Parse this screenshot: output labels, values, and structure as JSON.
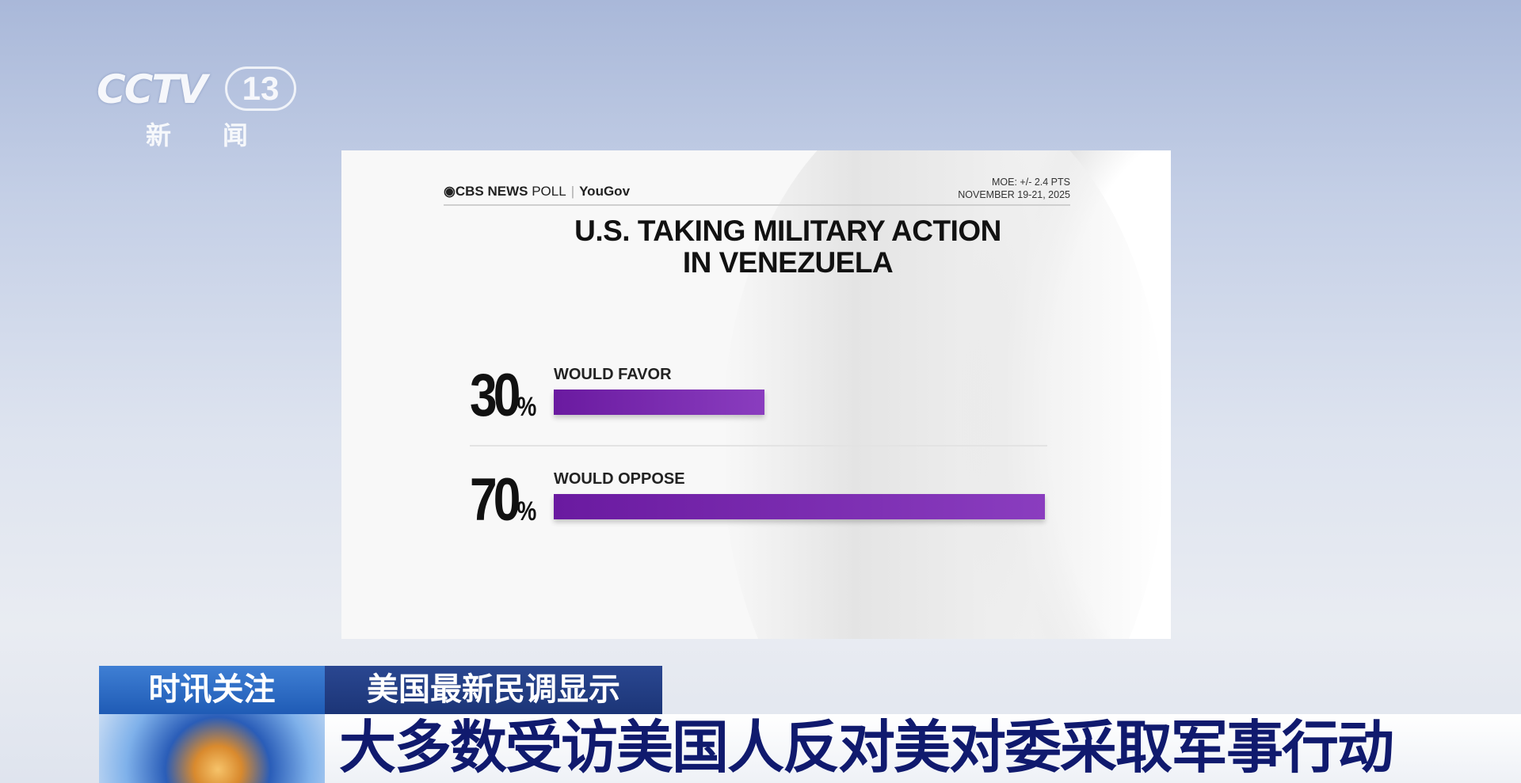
{
  "channel": {
    "logo_text": "CCTV",
    "channel_number": "13",
    "channel_name": "新 闻"
  },
  "card": {
    "source": "CBS NEWS",
    "source_suffix": "POLL",
    "partner": "YouGov",
    "moe": "MOE: +/- 2.4 PTS",
    "dates": "NOVEMBER 19-21, 2025",
    "title_line1": "U.S. TAKING MILITARY ACTION",
    "title_line2": "IN VENEZUELA"
  },
  "chart_data": {
    "type": "bar",
    "orientation": "horizontal",
    "title": "U.S. TAKING MILITARY ACTION IN VENEZUELA",
    "categories": [
      "WOULD FAVOR",
      "WOULD OPPOSE"
    ],
    "values": [
      30,
      70
    ],
    "value_labels": [
      "30",
      "70"
    ],
    "unit": "%",
    "xlim": [
      0,
      100
    ],
    "bar_color": "#8a3dbf",
    "grid": false
  },
  "lower_third": {
    "tag": "时讯关注",
    "subtitle": "美国最新民调显示",
    "headline": "大多数受访美国人反对美对委采取军事行动"
  }
}
